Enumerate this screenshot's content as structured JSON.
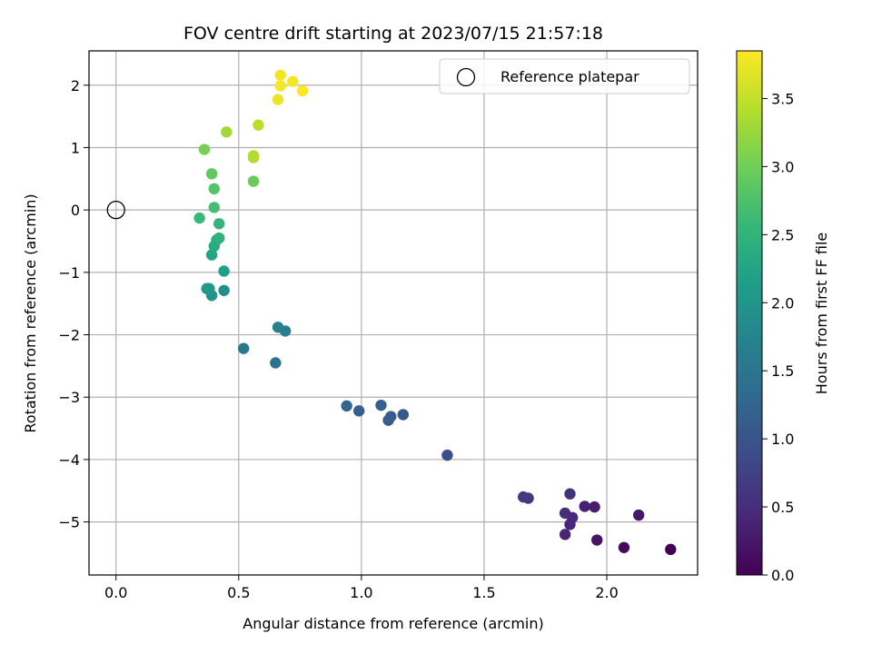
{
  "chart_data": {
    "type": "scatter",
    "title": "FOV centre drift starting at 2023/07/15 21:57:18",
    "xlabel": "Angular distance from reference (arcmin)",
    "ylabel": "Rotation from reference (arcmin)",
    "colorbar_label": "Hours from first FF file",
    "colormap": "viridis",
    "xlim": [
      -0.11,
      2.37
    ],
    "ylim": [
      -5.85,
      2.55
    ],
    "clim": [
      0.0,
      3.85
    ],
    "xticks": [
      "0.0",
      "0.5",
      "1.0",
      "1.5",
      "2.0"
    ],
    "yticks": [
      "2",
      "1",
      "0",
      "−1",
      "−2",
      "−3",
      "−4",
      "−5"
    ],
    "cticks": [
      "0.0",
      "0.5",
      "1.0",
      "1.5",
      "2.0",
      "2.5",
      "3.0",
      "3.5"
    ],
    "grid": true,
    "legend": {
      "position": "top-right",
      "entries": [
        "Reference platepar"
      ]
    },
    "reference_point": {
      "x": 0.0,
      "y": 0.0
    },
    "points": [
      {
        "x": 2.26,
        "y": -5.44,
        "c": 0.0
      },
      {
        "x": 2.07,
        "y": -5.41,
        "c": 0.1
      },
      {
        "x": 1.96,
        "y": -5.29,
        "c": 0.2
      },
      {
        "x": 2.13,
        "y": -4.89,
        "c": 0.25
      },
      {
        "x": 1.95,
        "y": -4.76,
        "c": 0.3
      },
      {
        "x": 1.91,
        "y": -4.75,
        "c": 0.35
      },
      {
        "x": 1.85,
        "y": -5.04,
        "c": 0.4
      },
      {
        "x": 1.86,
        "y": -4.93,
        "c": 0.45
      },
      {
        "x": 1.83,
        "y": -5.2,
        "c": 0.4
      },
      {
        "x": 1.83,
        "y": -4.86,
        "c": 0.5
      },
      {
        "x": 1.85,
        "y": -4.55,
        "c": 0.55
      },
      {
        "x": 1.68,
        "y": -4.62,
        "c": 0.6
      },
      {
        "x": 1.66,
        "y": -4.6,
        "c": 0.65
      },
      {
        "x": 1.35,
        "y": -3.93,
        "c": 0.9
      },
      {
        "x": 1.17,
        "y": -3.28,
        "c": 1.05
      },
      {
        "x": 1.12,
        "y": -3.31,
        "c": 1.1
      },
      {
        "x": 1.11,
        "y": -3.37,
        "c": 1.12
      },
      {
        "x": 1.08,
        "y": -3.13,
        "c": 1.15
      },
      {
        "x": 0.99,
        "y": -3.22,
        "c": 1.2
      },
      {
        "x": 0.94,
        "y": -3.14,
        "c": 1.25
      },
      {
        "x": 0.65,
        "y": -2.45,
        "c": 1.45
      },
      {
        "x": 0.52,
        "y": -2.22,
        "c": 1.55
      },
      {
        "x": 0.69,
        "y": -1.94,
        "c": 1.65
      },
      {
        "x": 0.66,
        "y": -1.88,
        "c": 1.7
      },
      {
        "x": 0.44,
        "y": -1.29,
        "c": 1.9
      },
      {
        "x": 0.39,
        "y": -1.37,
        "c": 1.95
      },
      {
        "x": 0.37,
        "y": -1.26,
        "c": 2.0
      },
      {
        "x": 0.38,
        "y": -1.26,
        "c": 2.05
      },
      {
        "x": 0.44,
        "y": -0.98,
        "c": 2.15
      },
      {
        "x": 0.39,
        "y": -0.72,
        "c": 2.25
      },
      {
        "x": 0.4,
        "y": -0.58,
        "c": 2.35
      },
      {
        "x": 0.41,
        "y": -0.48,
        "c": 2.4
      },
      {
        "x": 0.42,
        "y": -0.45,
        "c": 2.45
      },
      {
        "x": 0.42,
        "y": -0.22,
        "c": 2.55
      },
      {
        "x": 0.34,
        "y": -0.13,
        "c": 2.6
      },
      {
        "x": 0.4,
        "y": 0.04,
        "c": 2.7
      },
      {
        "x": 0.4,
        "y": 0.34,
        "c": 2.8
      },
      {
        "x": 0.39,
        "y": 0.58,
        "c": 2.9
      },
      {
        "x": 0.36,
        "y": 0.97,
        "c": 3.05
      },
      {
        "x": 0.56,
        "y": 0.46,
        "c": 2.95
      },
      {
        "x": 0.56,
        "y": 0.84,
        "c": 3.35
      },
      {
        "x": 0.56,
        "y": 0.87,
        "c": 3.4
      },
      {
        "x": 0.45,
        "y": 1.25,
        "c": 3.3
      },
      {
        "x": 0.58,
        "y": 1.36,
        "c": 3.45
      },
      {
        "x": 0.66,
        "y": 1.77,
        "c": 3.75
      },
      {
        "x": 0.67,
        "y": 1.99,
        "c": 3.8
      },
      {
        "x": 0.67,
        "y": 2.16,
        "c": 3.78
      },
      {
        "x": 0.72,
        "y": 2.06,
        "c": 3.82
      },
      {
        "x": 0.76,
        "y": 1.91,
        "c": 3.85
      }
    ]
  }
}
